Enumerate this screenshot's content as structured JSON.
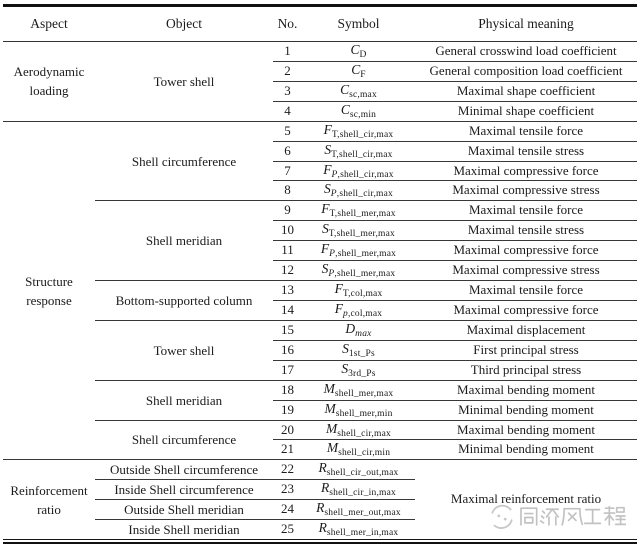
{
  "table": {
    "columns": [
      "Aspect",
      "Object",
      "No.",
      "Symbol",
      "Physical meaning"
    ],
    "aspects": [
      {
        "label": "Aerodynamic loading",
        "start": 1,
        "span": 4
      },
      {
        "label": "Structure response",
        "start": 5,
        "span": 17
      },
      {
        "label": "Reinforcement ratio",
        "start": 22,
        "span": 4
      }
    ],
    "objects": [
      {
        "label": "Tower shell",
        "start": 1,
        "span": 4
      },
      {
        "label": "Shell circumference",
        "start": 5,
        "span": 4
      },
      {
        "label": "Shell meridian",
        "start": 9,
        "span": 4
      },
      {
        "label": "Bottom-supported column",
        "start": 13,
        "span": 2
      },
      {
        "label": "Tower shell",
        "start": 15,
        "span": 3
      },
      {
        "label": "Shell meridian",
        "start": 18,
        "span": 2
      },
      {
        "label": "Shell circumference",
        "start": 20,
        "span": 2
      },
      {
        "label": "Outside Shell circumference",
        "start": 22,
        "span": 1
      },
      {
        "label": "Inside Shell circumference",
        "start": 23,
        "span": 1
      },
      {
        "label": "Outside Shell meridian",
        "start": 24,
        "span": 1
      },
      {
        "label": "Inside Shell meridian",
        "start": 25,
        "span": 1
      }
    ],
    "rows": [
      {
        "no": "1",
        "b": "C",
        "si": "",
        "sr": "D",
        "meaning": "General crosswind load coefficient"
      },
      {
        "no": "2",
        "b": "C",
        "si": "",
        "sr": "F",
        "meaning": "General composition load coefficient"
      },
      {
        "no": "3",
        "b": "C",
        "si": "",
        "sr": "sc,max",
        "meaning": "Maximal shape coefficient"
      },
      {
        "no": "4",
        "b": "C",
        "si": "",
        "sr": "sc,min",
        "meaning": "Minimal shape coefficient"
      },
      {
        "no": "5",
        "b": "F",
        "si": "",
        "sr": "T,shell_cir,max",
        "meaning": "Maximal tensile force"
      },
      {
        "no": "6",
        "b": "S",
        "si": "",
        "sr": "T,shell_cir,max",
        "meaning": "Maximal tensile stress"
      },
      {
        "no": "7",
        "b": "F",
        "si": "P",
        "sr": ",shell_cir,max",
        "meaning": "Maximal compressive force"
      },
      {
        "no": "8",
        "b": "S",
        "si": "P",
        "sr": ",shell_cir,max",
        "meaning": "Maximal compressive stress"
      },
      {
        "no": "9",
        "b": "F",
        "si": "",
        "sr": "T,shell_mer,max",
        "meaning": "Maximal tensile force"
      },
      {
        "no": "10",
        "b": "S",
        "si": "",
        "sr": "T,shell_mer,max",
        "meaning": "Maximal tensile stress"
      },
      {
        "no": "11",
        "b": "F",
        "si": "P",
        "sr": ",shell_mer,max",
        "meaning": "Maximal compressive force"
      },
      {
        "no": "12",
        "b": "S",
        "si": "P",
        "sr": ",shell_mer,max",
        "meaning": "Maximal compressive stress"
      },
      {
        "no": "13",
        "b": "F",
        "si": "",
        "sr": "T,col,max",
        "meaning": "Maximal tensile force"
      },
      {
        "no": "14",
        "b": "F",
        "si": "p",
        "sr": ",col,max",
        "meaning": "Maximal compressive force"
      },
      {
        "no": "15",
        "b": "D",
        "si": "max",
        "sr": "",
        "meaning": "Maximal displacement"
      },
      {
        "no": "16",
        "b": "S",
        "si": "",
        "sr": "1st_Ps",
        "meaning": "First principal stress"
      },
      {
        "no": "17",
        "b": "S",
        "si": "",
        "sr": "3rd_Ps",
        "meaning": "Third principal stress"
      },
      {
        "no": "18",
        "b": "M",
        "si": "",
        "sr": "shell_mer,max",
        "meaning": "Maximal bending moment"
      },
      {
        "no": "19",
        "b": "M",
        "si": "",
        "sr": "shell_mer,min",
        "meaning": "Minimal bending moment"
      },
      {
        "no": "20",
        "b": "M",
        "si": "",
        "sr": "shell_cir,max",
        "meaning": "Maximal bending moment"
      },
      {
        "no": "21",
        "b": "M",
        "si": "",
        "sr": "shell_cir,min",
        "meaning": "Minimal bending moment"
      },
      {
        "no": "22",
        "b": "R",
        "si": "",
        "sr": "shell_cir_out,max",
        "meaning": ""
      },
      {
        "no": "23",
        "b": "R",
        "si": "",
        "sr": "shell_cir_in,max",
        "meaning": ""
      },
      {
        "no": "24",
        "b": "R",
        "si": "",
        "sr": "shell_mer_out,max",
        "meaning": ""
      },
      {
        "no": "25",
        "b": "R",
        "si": "",
        "sr": "shell_mer_in,max",
        "meaning": ""
      }
    ],
    "merged_meaning": {
      "label": "Maximal reinforcement ratio",
      "start": 22,
      "span": 4
    }
  },
  "watermark": {
    "text": "同济风工程",
    "logo": "swirl-logo"
  },
  "colors": {
    "background": "#ffffff",
    "text": "#1b1b1b",
    "rule_thin": "#383838",
    "rule_heavy": "#111111",
    "watermark": "#c2c2c2"
  }
}
